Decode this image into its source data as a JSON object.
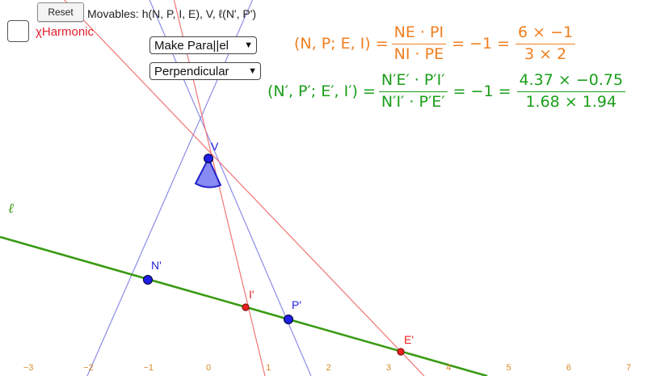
{
  "toolbar": {
    "reset_label": "Reset",
    "movables_text": "Movables: h(N, P, I, E), V, ℓ(N', P')"
  },
  "checkbox": {
    "label": "χHarmonic",
    "checked": false
  },
  "dropdowns": {
    "parallel": {
      "selected": "Make Para||el",
      "arrow": "▼"
    },
    "perpendicular": {
      "selected": "Perpendicular",
      "arrow": "▼"
    }
  },
  "formulas": {
    "orange": {
      "lhs": "(N, P; E, I) =",
      "frac1_num": "NE · PI",
      "frac1_den": "NI · PE",
      "mid": "= −1 =",
      "frac2_num": "6 × −1",
      "frac2_den": "3 × 2"
    },
    "green": {
      "lhs": "(N′, P′; E′, I′) =",
      "frac1_num": "N′E′ · P′I′",
      "frac1_den": "N′I′ · P′E′",
      "mid": "= −1 =",
      "frac2_num": "4.37 × −0.75",
      "frac2_den": "1.68 × 1.94"
    }
  },
  "construction": {
    "line_label": "ℓ",
    "axis_ticks": [
      -3,
      -2,
      -1,
      0,
      1,
      2,
      3,
      4,
      5,
      6,
      7
    ],
    "points": [
      {
        "name": "V",
        "role": "vertex"
      },
      {
        "name": "N'",
        "role": "movable"
      },
      {
        "name": "P'",
        "role": "movable"
      },
      {
        "name": "I'",
        "role": "intersection"
      },
      {
        "name": "E'",
        "role": "intersection"
      }
    ]
  },
  "colors": {
    "blue_point": "#1f1fe6",
    "red_point": "#e61f1f",
    "green_line": "#3a9b14",
    "blue_line": "#8c8ce8",
    "red_line": "#f07575",
    "axis_label": "#d98a28",
    "angle_fill": "#6a6ef0"
  }
}
